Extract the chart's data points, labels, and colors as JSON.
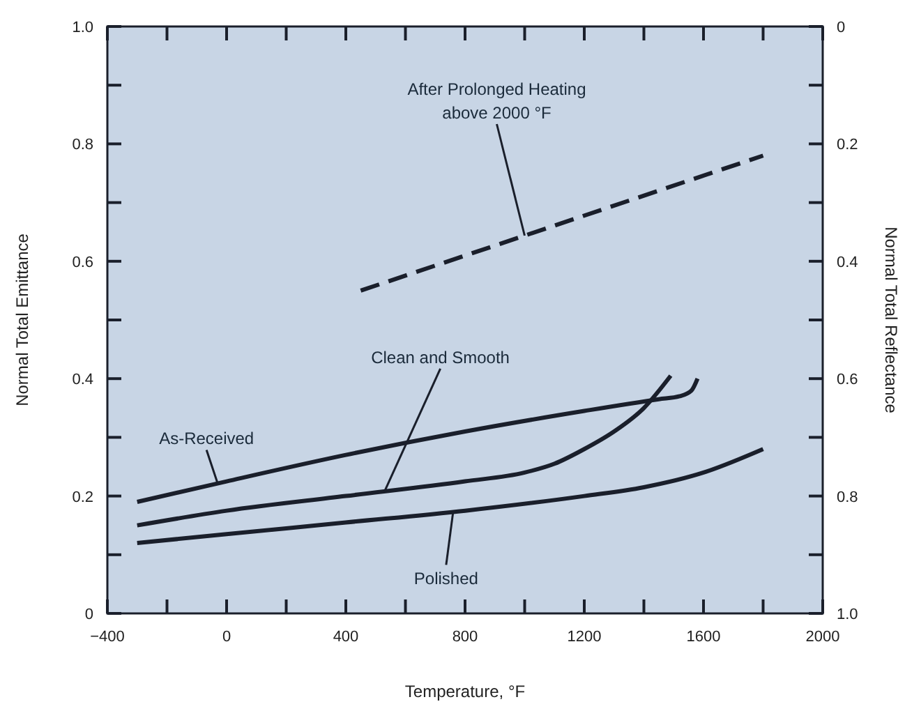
{
  "chart_data": {
    "type": "line",
    "xlabel": "Temperature, °F",
    "ylabel": "Normal Total Emittance",
    "y2label": "Normal Total Reflectance",
    "xlim": [
      -400,
      2000
    ],
    "xticks": [
      -400,
      {
        "value": -200,
        "label": null
      },
      0,
      {
        "value": 200,
        "label": null
      },
      400,
      {
        "value": 600,
        "label": null
      },
      800,
      {
        "value": 1000,
        "label": null
      },
      1200,
      {
        "value": 1400,
        "label": null
      },
      1600,
      {
        "value": 1800,
        "label": null
      },
      2000
    ],
    "ylim": [
      0,
      1
    ],
    "yticks": [
      0,
      {
        "value": 0.1,
        "label": null
      },
      0.2,
      {
        "value": 0.3,
        "label": null
      },
      0.4,
      {
        "value": 0.5,
        "label": null
      },
      0.6,
      {
        "value": 0.7,
        "label": null
      },
      0.8,
      {
        "value": 0.9,
        "label": null
      },
      {
        "value": 1,
        "label": "1.0"
      }
    ],
    "y2lim": [
      1,
      0
    ],
    "y2ticks": [
      0,
      {
        "value": 0.1,
        "label": null
      },
      0.2,
      {
        "value": 0.3,
        "label": null
      },
      0.4,
      {
        "value": 0.5,
        "label": null
      },
      0.6,
      {
        "value": 0.7,
        "label": null
      },
      0.8,
      {
        "value": 0.9,
        "label": null
      },
      {
        "value": 1,
        "label": "1.0"
      }
    ],
    "grid": false,
    "marker": "none",
    "series": [
      {
        "name": "As-Received",
        "color": "#1a1f2b",
        "line_style": "solid",
        "x": [
          -300,
          0,
          400,
          800,
          1200,
          1450,
          1520,
          1560,
          1580
        ],
        "values": [
          0.19,
          0.225,
          0.27,
          0.31,
          0.345,
          0.365,
          0.37,
          0.38,
          0.4
        ]
      },
      {
        "name": "Clean and Smooth",
        "color": "#1a1f2b",
        "line_style": "solid",
        "x": [
          -300,
          0,
          400,
          800,
          1000,
          1100,
          1200,
          1300,
          1400,
          1490
        ],
        "values": [
          0.15,
          0.175,
          0.2,
          0.225,
          0.24,
          0.255,
          0.28,
          0.31,
          0.35,
          0.405
        ]
      },
      {
        "name": "Polished",
        "color": "#1a1f2b",
        "line_style": "solid",
        "x": [
          -300,
          0,
          400,
          800,
          1200,
          1400,
          1600,
          1800
        ],
        "values": [
          0.12,
          0.135,
          0.155,
          0.175,
          0.2,
          0.215,
          0.24,
          0.28
        ]
      },
      {
        "name": "After Prolonged Heating\nabove 2000 °F",
        "color": "#1a1f2b",
        "line_style": "dashed",
        "x": [
          450,
          1800
        ],
        "values": [
          0.55,
          0.78
        ]
      }
    ]
  }
}
